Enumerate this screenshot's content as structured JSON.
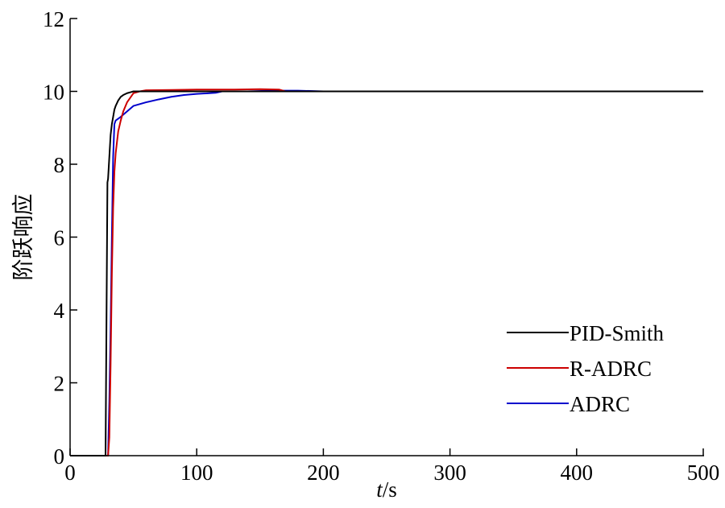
{
  "chart_data": {
    "type": "line",
    "title": "",
    "xlabel_italic": "t",
    "xlabel_unit": "/s",
    "ylabel": "阶跃响应",
    "xlim": [
      0,
      500
    ],
    "ylim": [
      0,
      12
    ],
    "xticks": [
      0,
      100,
      200,
      300,
      400,
      500
    ],
    "yticks": [
      0,
      2,
      4,
      6,
      8,
      10,
      12
    ],
    "grid": false,
    "legend_position": "bottom-right",
    "series": [
      {
        "name": "PID-Smith",
        "color": "#000000",
        "x": [
          0,
          28,
          29,
          29.5,
          30,
          31,
          32,
          33,
          34,
          35,
          36,
          38,
          40,
          42,
          45,
          48,
          50,
          55,
          60,
          80,
          100,
          150,
          200,
          300,
          400,
          500
        ],
        "y": [
          0,
          0,
          5.0,
          7.5,
          7.6,
          8.2,
          8.8,
          9.1,
          9.3,
          9.5,
          9.6,
          9.75,
          9.85,
          9.9,
          9.95,
          9.98,
          10.0,
          10.0,
          10.0,
          10.0,
          10.0,
          10.0,
          10.0,
          10.0,
          10.0,
          10.0
        ]
      },
      {
        "name": "R-ADRC",
        "color": "#cc0000",
        "x": [
          0,
          30,
          31,
          32,
          33,
          34,
          35,
          36,
          37,
          38,
          40,
          42,
          45,
          48,
          50,
          55,
          60,
          80,
          100,
          130,
          150,
          165,
          170,
          200,
          300,
          400,
          500
        ],
        "y": [
          0,
          0,
          0.5,
          2.5,
          5.0,
          6.8,
          7.8,
          8.3,
          8.6,
          8.9,
          9.2,
          9.45,
          9.7,
          9.85,
          9.95,
          10.0,
          10.03,
          10.04,
          10.05,
          10.05,
          10.06,
          10.05,
          10.0,
          10.0,
          10.0,
          10.0,
          10.0
        ]
      },
      {
        "name": "ADRC",
        "color": "#0000cc",
        "x": [
          0,
          30,
          31,
          32,
          33,
          34,
          35,
          36,
          40,
          45,
          50,
          60,
          70,
          80,
          90,
          100,
          110,
          115,
          120,
          140,
          160,
          180,
          200,
          300,
          400,
          500
        ],
        "y": [
          0,
          0,
          1.5,
          3.5,
          6.0,
          8.2,
          9.1,
          9.2,
          9.3,
          9.45,
          9.6,
          9.7,
          9.78,
          9.85,
          9.9,
          9.93,
          9.95,
          9.96,
          10.0,
          10.0,
          10.02,
          10.02,
          10.0,
          10.0,
          10.0,
          10.0
        ]
      }
    ]
  }
}
